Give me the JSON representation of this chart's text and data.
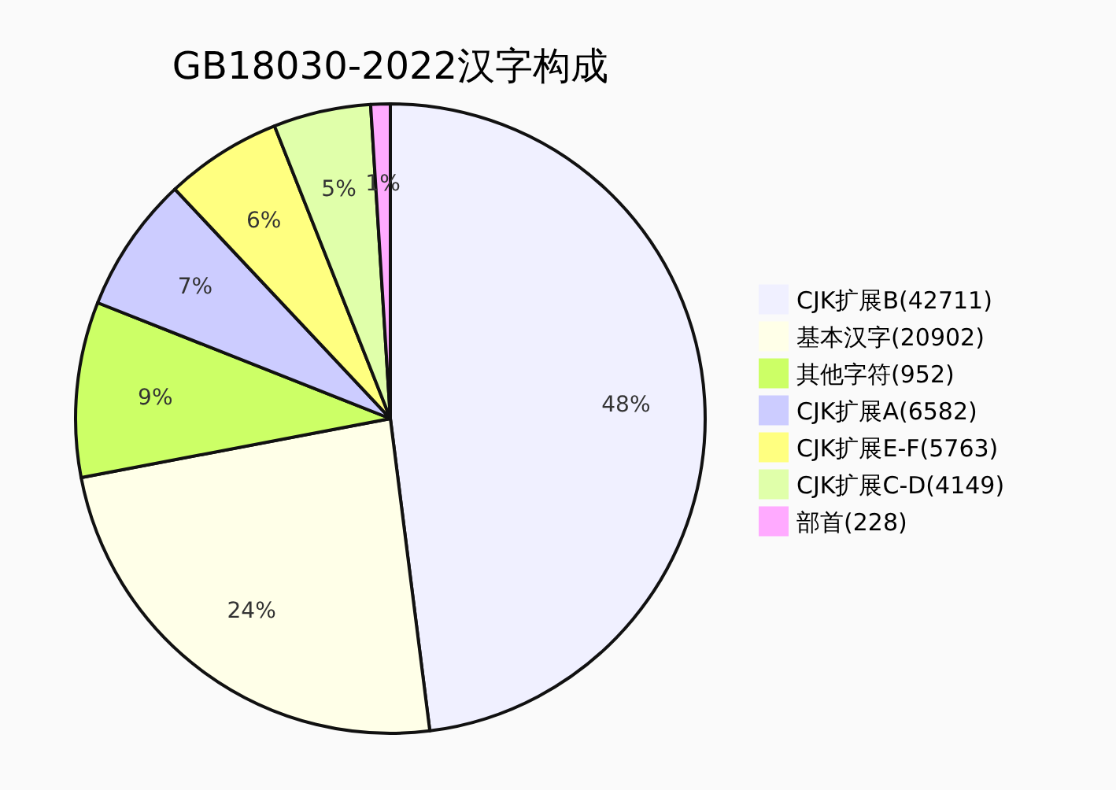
{
  "chart_data": {
    "type": "pie",
    "title": "GB18030-2022汉字构成",
    "categories": [
      "CJK扩展B(42711)",
      "基本汉字(20902)",
      "其他字符(952)",
      "CJK扩展A(6582)",
      "CJK扩展E-F(5763)",
      "CJK扩展C-D(4149)",
      "部首(228)"
    ],
    "values": [
      48,
      24,
      9,
      7,
      6,
      5,
      1
    ],
    "colors": [
      "#f0f0ff",
      "#ffffe8",
      "#ccff66",
      "#ccccff",
      "#ffff80",
      "#e0ffaa",
      "#ffaaff"
    ],
    "value_labels": [
      "48%",
      "24%",
      "9%",
      "7%",
      "6%",
      "5%",
      "1%"
    ],
    "legend": "right"
  }
}
